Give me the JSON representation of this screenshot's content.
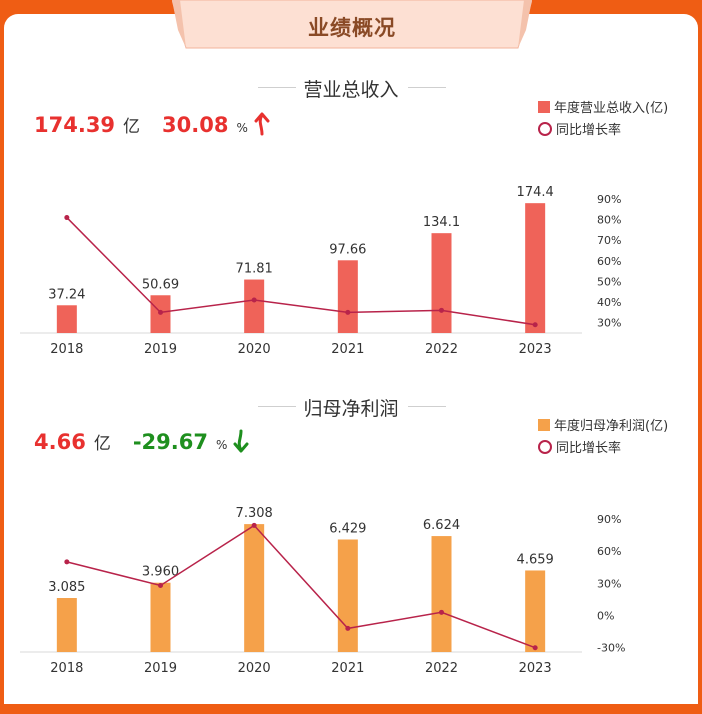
{
  "banner": {
    "title": "业绩概况"
  },
  "revenue": {
    "title": "营业总收入",
    "kpi": {
      "value": "174.39",
      "unit": "亿",
      "yoy": "30.08",
      "yoy_unit": "%",
      "direction": "up"
    },
    "legend": {
      "bar": "年度营业总收入(亿)",
      "line": "同比增长率"
    },
    "colors": {
      "bar": "#ef6359",
      "line": "#b8234a",
      "kpi_yoy": "#e8312f"
    },
    "chart_data": {
      "type": "bar",
      "categories": [
        "2018",
        "2019",
        "2020",
        "2021",
        "2022",
        "2023"
      ],
      "series": [
        {
          "name": "年度营业总收入(亿)",
          "type": "bar",
          "values": [
            37.24,
            50.69,
            71.81,
            97.66,
            134.1,
            174.4
          ],
          "labels": [
            "37.24",
            "50.69",
            "71.81",
            "97.66",
            "134.1",
            "174.4"
          ]
        },
        {
          "name": "同比增长率",
          "type": "line",
          "axis": "right",
          "values": [
            81,
            35,
            41,
            35,
            36,
            29
          ]
        }
      ],
      "ylim": [
        0,
        180
      ],
      "y2lim": [
        25,
        90
      ],
      "y2ticks": [
        "90%",
        "80%",
        "70%",
        "60%",
        "50%",
        "40%",
        "30%"
      ],
      "y2tickvalues": [
        90,
        80,
        70,
        60,
        50,
        40,
        30
      ]
    }
  },
  "profit": {
    "title": "归母净利润",
    "kpi": {
      "value": "4.66",
      "unit": "亿",
      "yoy": "-29.67",
      "yoy_unit": "%",
      "direction": "down"
    },
    "legend": {
      "bar": "年度归母净利润(亿)",
      "line": "同比增长率"
    },
    "colors": {
      "bar": "#f5a14a",
      "line": "#b8234a",
      "kpi_yoy": "#1e8f1e"
    },
    "chart_data": {
      "type": "bar",
      "categories": [
        "2018",
        "2019",
        "2020",
        "2021",
        "2022",
        "2023"
      ],
      "series": [
        {
          "name": "年度归母净利润(亿)",
          "type": "bar",
          "values": [
            3.085,
            3.96,
            7.308,
            6.429,
            6.624,
            4.659
          ],
          "labels": [
            "3.085",
            "3.960",
            "7.308",
            "6.429",
            "6.624",
            "4.659"
          ]
        },
        {
          "name": "同比增长率",
          "type": "line",
          "axis": "right",
          "values": [
            50,
            28,
            84,
            -12,
            3,
            -30
          ]
        }
      ],
      "ylim": [
        0,
        7.6
      ],
      "y2lim": [
        -34,
        90
      ],
      "y2ticks": [
        "90%",
        "60%",
        "30%",
        "0%",
        "-30%"
      ],
      "y2tickvalues": [
        90,
        60,
        30,
        0,
        -30
      ]
    }
  }
}
